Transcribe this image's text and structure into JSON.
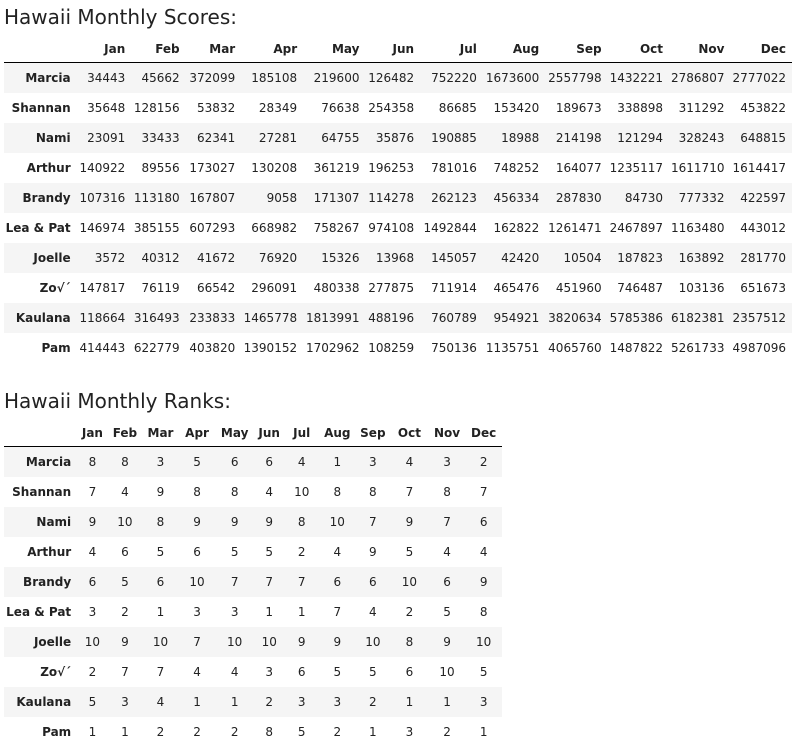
{
  "scores": {
    "title": "Hawaii Monthly Scores:",
    "months": [
      "Jan",
      "Feb",
      "Mar",
      "Apr",
      "May",
      "Jun",
      "Jul",
      "Aug",
      "Sep",
      "Oct",
      "Nov",
      "Dec"
    ],
    "rows": [
      {
        "name": "Marcia",
        "values": [
          "34443",
          "45662",
          "372099",
          "185108",
          "219600",
          "126482",
          "752220",
          "1673600",
          "2557798",
          "1432221",
          "2786807",
          "2777022"
        ]
      },
      {
        "name": "Shannan",
        "values": [
          "35648",
          "128156",
          "53832",
          "28349",
          "76638",
          "254358",
          "86685",
          "153420",
          "189673",
          "338898",
          "311292",
          "453822"
        ]
      },
      {
        "name": "Nami",
        "values": [
          "23091",
          "33433",
          "62341",
          "27281",
          "64755",
          "35876",
          "190885",
          "18988",
          "214198",
          "121294",
          "328243",
          "648815"
        ]
      },
      {
        "name": "Arthur",
        "values": [
          "140922",
          "89556",
          "173027",
          "130208",
          "361219",
          "196253",
          "781016",
          "748252",
          "164077",
          "1235117",
          "1611710",
          "1614417"
        ]
      },
      {
        "name": "Brandy",
        "values": [
          "107316",
          "113180",
          "167807",
          "9058",
          "171307",
          "114278",
          "262123",
          "456334",
          "287830",
          "84730",
          "777332",
          "422597"
        ]
      },
      {
        "name": "Lea & Pat",
        "values": [
          "146974",
          "385155",
          "607293",
          "668982",
          "758267",
          "974108",
          "1492844",
          "162822",
          "1261471",
          "2467897",
          "1163480",
          "443012"
        ]
      },
      {
        "name": "Joelle",
        "values": [
          "3572",
          "40312",
          "41672",
          "76920",
          "15326",
          "13968",
          "145057",
          "42420",
          "10504",
          "187823",
          "163892",
          "281770"
        ]
      },
      {
        "name": "Zo√´",
        "values": [
          "147817",
          "76119",
          "66542",
          "296091",
          "480338",
          "277875",
          "711914",
          "465476",
          "451960",
          "746487",
          "103136",
          "651673"
        ]
      },
      {
        "name": "Kaulana",
        "values": [
          "118664",
          "316493",
          "233833",
          "1465778",
          "1813991",
          "488196",
          "760789",
          "954921",
          "3820634",
          "5785386",
          "6182381",
          "2357512"
        ]
      },
      {
        "name": "Pam",
        "values": [
          "414443",
          "622779",
          "403820",
          "1390152",
          "1702962",
          "108259",
          "750136",
          "1135751",
          "4065760",
          "1487822",
          "5261733",
          "4987096"
        ]
      }
    ]
  },
  "ranks": {
    "title": "Hawaii Monthly Ranks:",
    "months": [
      "Jan",
      "Feb",
      "Mar",
      "Apr",
      "May",
      "Jun",
      "Jul",
      "Aug",
      "Sep",
      "Oct",
      "Nov",
      "Dec"
    ],
    "rows": [
      {
        "name": "Marcia",
        "values": [
          "8",
          "8",
          "3",
          "5",
          "6",
          "6",
          "4",
          "1",
          "3",
          "4",
          "3",
          "2"
        ]
      },
      {
        "name": "Shannan",
        "values": [
          "7",
          "4",
          "9",
          "8",
          "8",
          "4",
          "10",
          "8",
          "8",
          "7",
          "8",
          "7"
        ]
      },
      {
        "name": "Nami",
        "values": [
          "9",
          "10",
          "8",
          "9",
          "9",
          "9",
          "8",
          "10",
          "7",
          "9",
          "7",
          "6"
        ]
      },
      {
        "name": "Arthur",
        "values": [
          "4",
          "6",
          "5",
          "6",
          "5",
          "5",
          "2",
          "4",
          "9",
          "5",
          "4",
          "4"
        ]
      },
      {
        "name": "Brandy",
        "values": [
          "6",
          "5",
          "6",
          "10",
          "7",
          "7",
          "7",
          "6",
          "6",
          "10",
          "6",
          "9"
        ]
      },
      {
        "name": "Lea & Pat",
        "values": [
          "3",
          "2",
          "1",
          "3",
          "3",
          "1",
          "1",
          "7",
          "4",
          "2",
          "5",
          "8"
        ]
      },
      {
        "name": "Joelle",
        "values": [
          "10",
          "9",
          "10",
          "7",
          "10",
          "10",
          "9",
          "9",
          "10",
          "8",
          "9",
          "10"
        ]
      },
      {
        "name": "Zo√´",
        "values": [
          "2",
          "7",
          "7",
          "4",
          "4",
          "3",
          "6",
          "5",
          "5",
          "6",
          "10",
          "5"
        ]
      },
      {
        "name": "Kaulana",
        "values": [
          "5",
          "3",
          "4",
          "1",
          "1",
          "2",
          "3",
          "3",
          "2",
          "1",
          "1",
          "3"
        ]
      },
      {
        "name": "Pam",
        "values": [
          "1",
          "1",
          "2",
          "2",
          "2",
          "8",
          "5",
          "2",
          "1",
          "3",
          "2",
          "1"
        ]
      }
    ]
  }
}
